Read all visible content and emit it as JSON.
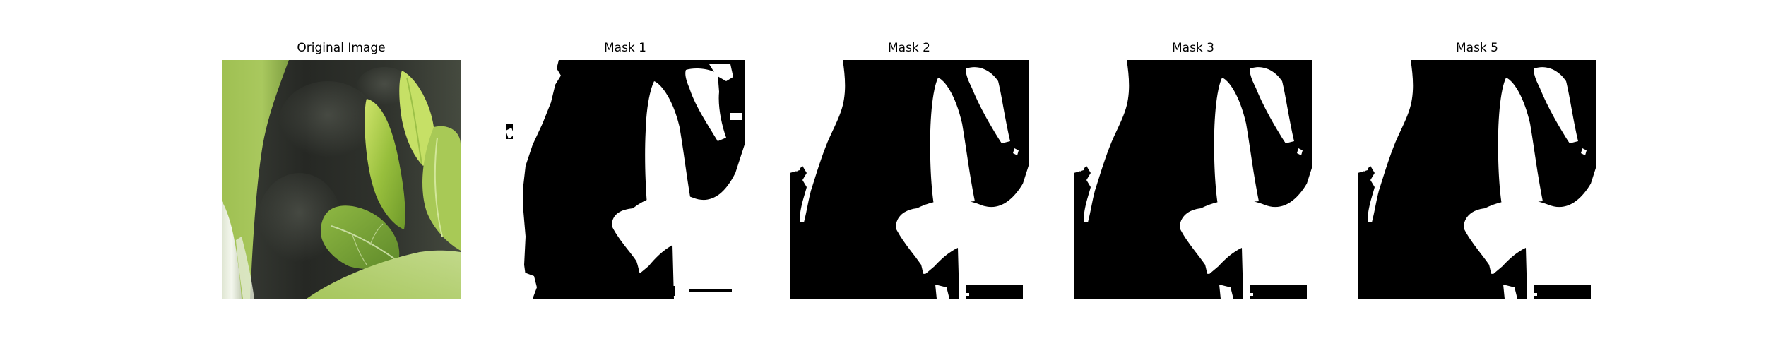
{
  "figure": {
    "panels": [
      {
        "title": "Original Image",
        "kind": "photo"
      },
      {
        "title": "Mask 1",
        "kind": "mask"
      },
      {
        "title": "Mask 2",
        "kind": "mask"
      },
      {
        "title": "Mask 3",
        "kind": "mask"
      },
      {
        "title": "Mask 5",
        "kind": "mask"
      }
    ]
  },
  "colors": {
    "mask_foreground": "#ffffff",
    "mask_background": "#000000",
    "leaf_light": "#b9d85a",
    "leaf_mid": "#8db43c",
    "leaf_dark": "#5f8a2a",
    "soil_dark": "#1e211d"
  }
}
